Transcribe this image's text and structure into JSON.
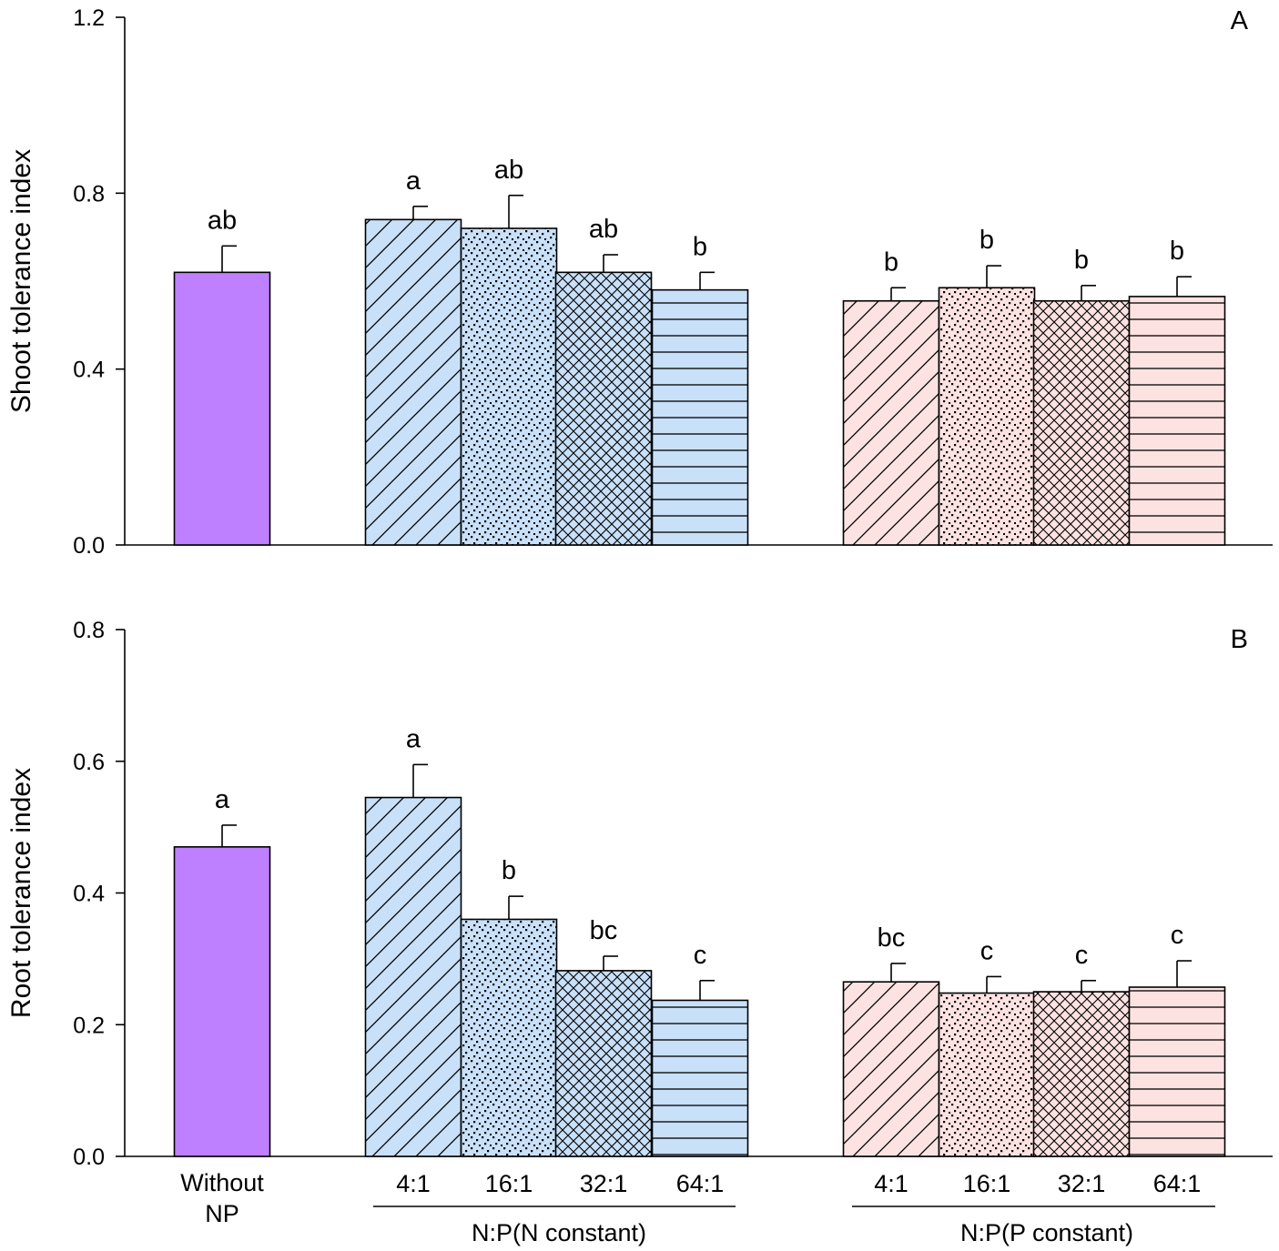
{
  "colors": {
    "without_np": "#bf80ff",
    "n_constant": "#c8e0f8",
    "p_constant": "#fde2e2",
    "axis": "#000000"
  },
  "chart_data": [
    {
      "type": "bar",
      "panel_label": "A",
      "ylabel": "Shoot tolerance index",
      "ylim": [
        0,
        1.2
      ],
      "yticks": [
        "0.0",
        "0.4",
        "0.8",
        "1.2"
      ],
      "grid": false,
      "bars": [
        {
          "group": "Without NP",
          "category": "Without NP",
          "value": 0.62,
          "error": 0.06,
          "letter": "ab",
          "pattern": "solid"
        },
        {
          "group": "N constant",
          "category": "4:1",
          "value": 0.74,
          "error": 0.03,
          "letter": "a",
          "pattern": "diagonal"
        },
        {
          "group": "N constant",
          "category": "16:1",
          "value": 0.72,
          "error": 0.075,
          "letter": "ab",
          "pattern": "dots"
        },
        {
          "group": "N constant",
          "category": "32:1",
          "value": 0.62,
          "error": 0.04,
          "letter": "ab",
          "pattern": "crosshatch"
        },
        {
          "group": "N constant",
          "category": "64:1",
          "value": 0.58,
          "error": 0.04,
          "letter": "b",
          "pattern": "horizontal"
        },
        {
          "group": "P constant",
          "category": "4:1",
          "value": 0.555,
          "error": 0.03,
          "letter": "b",
          "pattern": "diagonal"
        },
        {
          "group": "P constant",
          "category": "16:1",
          "value": 0.585,
          "error": 0.05,
          "letter": "b",
          "pattern": "dots"
        },
        {
          "group": "P constant",
          "category": "32:1",
          "value": 0.555,
          "error": 0.035,
          "letter": "b",
          "pattern": "crosshatch"
        },
        {
          "group": "P constant",
          "category": "64:1",
          "value": 0.565,
          "error": 0.045,
          "letter": "b",
          "pattern": "horizontal"
        }
      ]
    },
    {
      "type": "bar",
      "panel_label": "B",
      "ylabel": "Root tolerance index",
      "ylim": [
        0,
        0.8
      ],
      "yticks": [
        "0.0",
        "0.2",
        "0.4",
        "0.6",
        "0.8"
      ],
      "grid": false,
      "bars": [
        {
          "group": "Without NP",
          "category": "Without NP",
          "value": 0.47,
          "error": 0.033,
          "letter": "a",
          "pattern": "solid"
        },
        {
          "group": "N constant",
          "category": "4:1",
          "value": 0.545,
          "error": 0.05,
          "letter": "a",
          "pattern": "diagonal"
        },
        {
          "group": "N constant",
          "category": "16:1",
          "value": 0.36,
          "error": 0.035,
          "letter": "b",
          "pattern": "dots"
        },
        {
          "group": "N constant",
          "category": "32:1",
          "value": 0.282,
          "error": 0.022,
          "letter": "bc",
          "pattern": "crosshatch"
        },
        {
          "group": "N constant",
          "category": "64:1",
          "value": 0.237,
          "error": 0.03,
          "letter": "c",
          "pattern": "horizontal"
        },
        {
          "group": "P constant",
          "category": "4:1",
          "value": 0.265,
          "error": 0.028,
          "letter": "bc",
          "pattern": "diagonal"
        },
        {
          "group": "P constant",
          "category": "16:1",
          "value": 0.248,
          "error": 0.025,
          "letter": "c",
          "pattern": "dots"
        },
        {
          "group": "P constant",
          "category": "32:1",
          "value": 0.25,
          "error": 0.017,
          "letter": "c",
          "pattern": "crosshatch"
        },
        {
          "group": "P constant",
          "category": "64:1",
          "value": 0.257,
          "error": 0.04,
          "letter": "c",
          "pattern": "horizontal"
        }
      ]
    }
  ],
  "x_axis": {
    "without_np_label": [
      "Without",
      "NP"
    ],
    "ratio_labels": [
      "4:1",
      "16:1",
      "32:1",
      "64:1"
    ],
    "group_labels": [
      "N:P(N constant)",
      "N:P(P constant)"
    ]
  }
}
